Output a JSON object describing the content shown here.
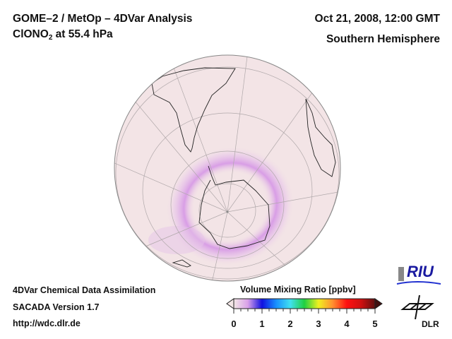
{
  "header": {
    "title_line1": "GOME–2 / MetOp – 4DVar Analysis",
    "species_main": "ClONO",
    "species_sub": "2",
    "species_rest": " at 55.4 hPa",
    "date": "Oct 21, 2008, 12:00 GMT",
    "region": "Southern Hemisphere"
  },
  "footer": {
    "line1": "4DVar Chemical Data Assimilation",
    "line2": "SACADA Version 1.7",
    "line3": "http://wdc.dlr.de"
  },
  "colorbar": {
    "title": "Volume Mixing Ratio [ppbv]",
    "ticks": [
      "0",
      "1",
      "2",
      "3",
      "4",
      "5"
    ],
    "range": [
      0,
      5
    ],
    "colors": [
      "#f3e6e6",
      "#d9a0e8",
      "#1010e0",
      "#1890ff",
      "#40e0f0",
      "#20d040",
      "#f0f020",
      "#ff9030",
      "#ff1010",
      "#d01010",
      "#601010"
    ]
  },
  "logos": {
    "riu": "RIU",
    "dlr": "DLR"
  },
  "map": {
    "projection": "orthographic",
    "center": "South Pole",
    "field_color": "#f3e4e6",
    "enhanced_color": "#d79ae6"
  }
}
